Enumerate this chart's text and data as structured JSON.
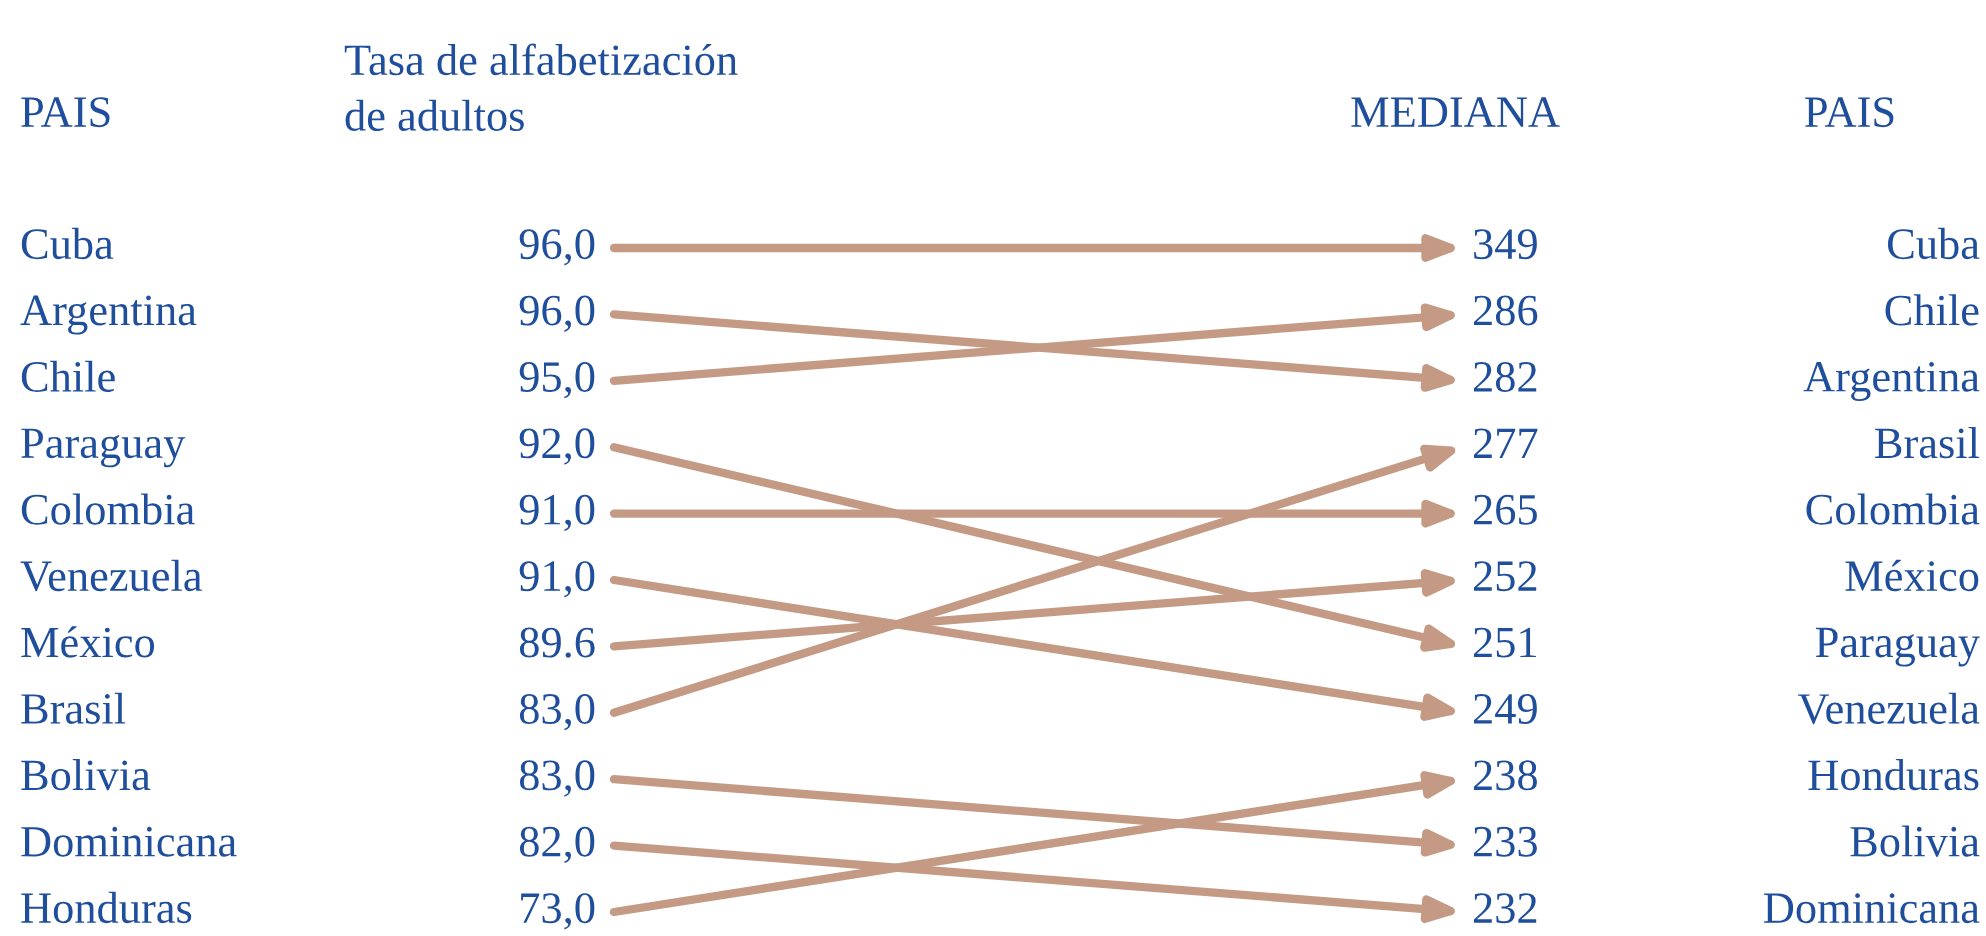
{
  "chart_data": {
    "type": "other",
    "ylabel": "PAIS",
    "y2label": "PAIS",
    "data_labels": true,
    "categories": [
      "Cuba",
      "Argentina",
      "Chile",
      "Paraguay",
      "Colombia",
      "Venezuela",
      "México",
      "Brasil",
      "Bolivia",
      "Dominicana",
      "Honduras"
    ],
    "y2_categories": [
      "Cuba",
      "Chile",
      "Argentina",
      "Brasil",
      "Colombia",
      "México",
      "Paraguay",
      "Venezuela",
      "Honduras",
      "Bolivia",
      "Dominicana"
    ],
    "series": [
      {
        "name": "Tasa de alfabetización\nde adultos",
        "values": [
          96.0,
          96.0,
          95.0,
          92.0,
          91.0,
          91.0,
          89.6,
          83.0,
          83.0,
          82.0,
          73.0
        ],
        "value_labels": [
          "96,0",
          "96,0",
          "95,0",
          "92,0",
          "91,0",
          "91,0",
          "89.6",
          "83,0",
          "83,0",
          "82,0",
          "73,0"
        ]
      },
      {
        "name": "MEDIANA",
        "values": [
          349,
          286,
          282,
          277,
          265,
          252,
          251,
          249,
          238,
          233,
          232
        ]
      }
    ]
  }
}
